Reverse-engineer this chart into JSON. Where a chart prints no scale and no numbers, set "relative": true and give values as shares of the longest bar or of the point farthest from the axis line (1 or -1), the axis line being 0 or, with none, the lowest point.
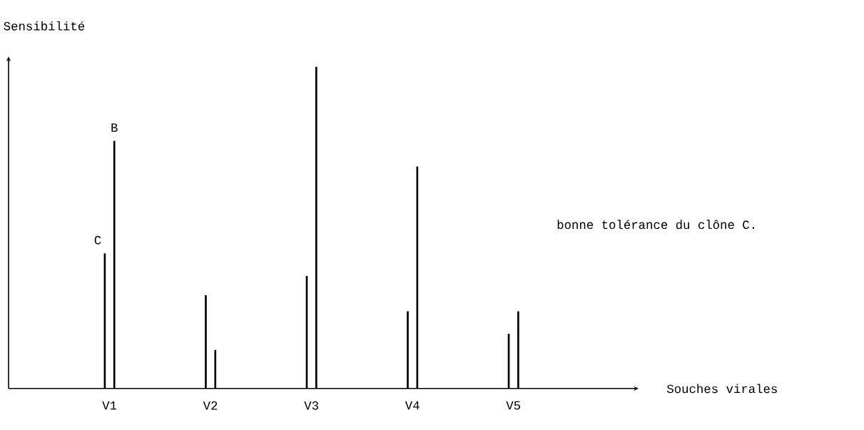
{
  "chart_data": {
    "type": "bar",
    "relative": true,
    "xlabel": "Souches virales",
    "ylabel": "Sensibilité",
    "categories": [
      "V1",
      "V2",
      "V3",
      "V4",
      "V5"
    ],
    "series": [
      {
        "name": "C",
        "color": "#000000",
        "values": [
          0.42,
          0.29,
          0.35,
          0.24,
          0.17
        ]
      },
      {
        "name": "B",
        "color": "#000000",
        "values": [
          0.77,
          0.12,
          1,
          0.69,
          0.24
        ]
      }
    ],
    "annotations": [
      "bonne tolérance du clône C."
    ]
  }
}
